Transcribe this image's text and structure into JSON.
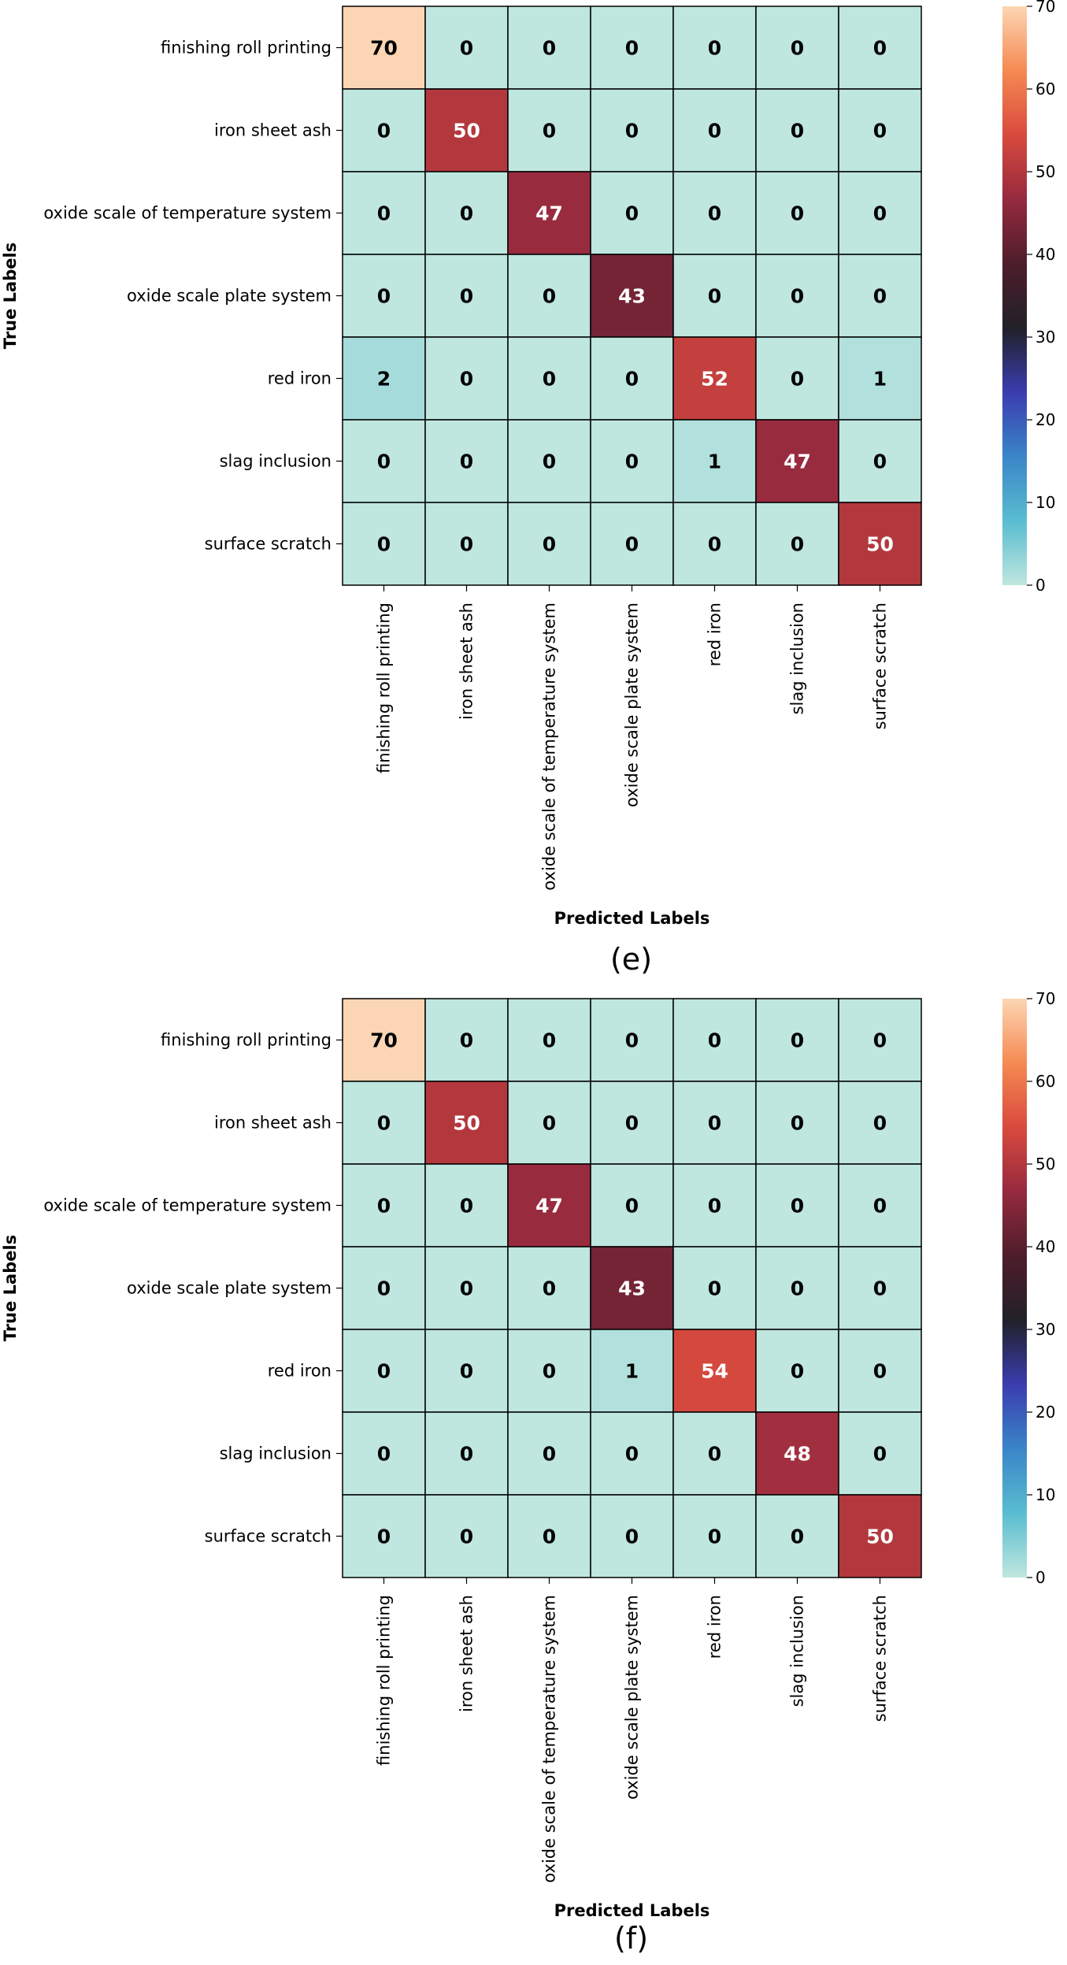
{
  "chart_data": [
    {
      "type": "heatmap",
      "caption": "(e)",
      "xlabel": "Predicted Labels",
      "ylabel": "True Labels",
      "categories": [
        "finishing roll printing",
        "iron sheet ash",
        "oxide scale of temperature system",
        "oxide scale plate system",
        "red iron",
        "slag inclusion",
        "surface scratch"
      ],
      "matrix": [
        [
          70,
          0,
          0,
          0,
          0,
          0,
          0
        ],
        [
          0,
          50,
          0,
          0,
          0,
          0,
          0
        ],
        [
          0,
          0,
          47,
          0,
          0,
          0,
          0
        ],
        [
          0,
          0,
          0,
          43,
          0,
          0,
          0
        ],
        [
          2,
          0,
          0,
          0,
          52,
          0,
          1
        ],
        [
          0,
          0,
          0,
          0,
          1,
          47,
          0
        ],
        [
          0,
          0,
          0,
          0,
          0,
          0,
          50
        ]
      ],
      "colorbar": {
        "min": 0,
        "max": 70,
        "ticks": [
          0,
          10,
          20,
          30,
          40,
          50,
          60,
          70
        ]
      }
    },
    {
      "type": "heatmap",
      "caption": "(f)",
      "xlabel": "Predicted Labels",
      "ylabel": "True Labels",
      "categories": [
        "finishing roll printing",
        "iron sheet ash",
        "oxide scale of temperature system",
        "oxide scale plate system",
        "red iron",
        "slag inclusion",
        "surface scratch"
      ],
      "matrix": [
        [
          70,
          0,
          0,
          0,
          0,
          0,
          0
        ],
        [
          0,
          50,
          0,
          0,
          0,
          0,
          0
        ],
        [
          0,
          0,
          47,
          0,
          0,
          0,
          0
        ],
        [
          0,
          0,
          0,
          43,
          0,
          0,
          0
        ],
        [
          0,
          0,
          0,
          1,
          54,
          0,
          0
        ],
        [
          0,
          0,
          0,
          0,
          0,
          48,
          0
        ],
        [
          0,
          0,
          0,
          0,
          0,
          0,
          50
        ]
      ],
      "colorbar": {
        "min": 0,
        "max": 70,
        "ticks": [
          0,
          10,
          20,
          30,
          40,
          50,
          60,
          70
        ]
      }
    }
  ],
  "colormap": [
    "#bfe6df",
    "#59bdd0",
    "#3a85c8",
    "#3b3db0",
    "#212129",
    "#4e1d2a",
    "#962a3f",
    "#d94a3d",
    "#f58a52",
    "#fcd6b4"
  ]
}
